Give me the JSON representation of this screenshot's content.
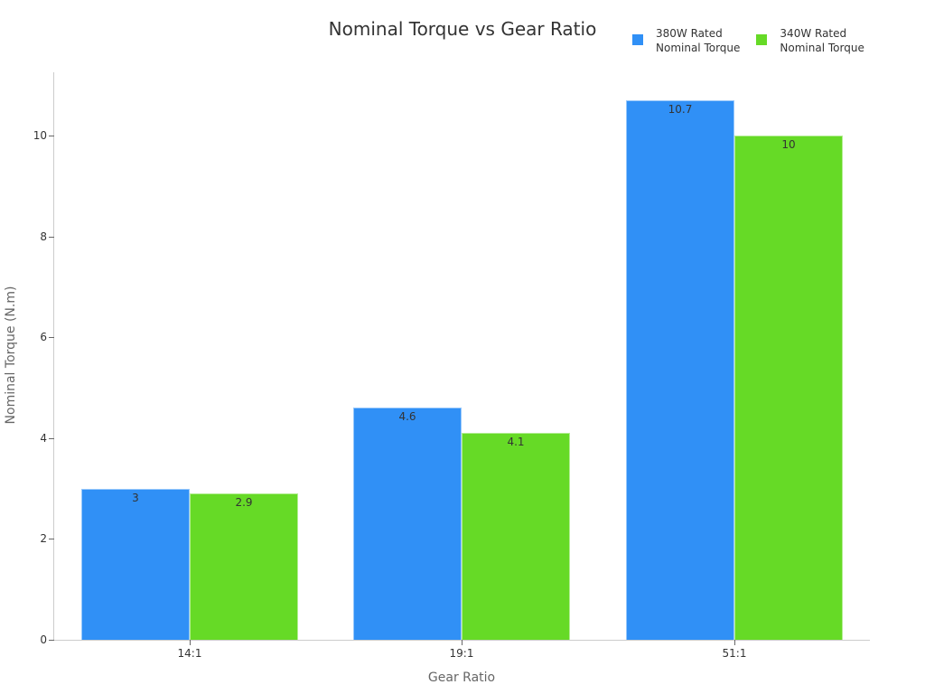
{
  "chart_data": {
    "type": "bar",
    "title": "Nominal Torque vs Gear Ratio",
    "xlabel": "Gear Ratio",
    "ylabel": "Nominal Torque (N.m)",
    "categories": [
      "14:1",
      "19:1",
      "51:1"
    ],
    "series": [
      {
        "name": "380W Rated\nNominal Torque",
        "color": "#3090F6",
        "values": [
          3,
          4.6,
          10.7
        ]
      },
      {
        "name": "340W Rated\nNominal Torque",
        "color": "#66DA26",
        "values": [
          2.9,
          4.1,
          10
        ]
      }
    ],
    "ylim": [
      0,
      11.3
    ],
    "yticks": [
      0,
      2,
      4,
      6,
      8,
      10
    ],
    "grid": false,
    "legend_position": "top-right",
    "data_labels": true
  }
}
